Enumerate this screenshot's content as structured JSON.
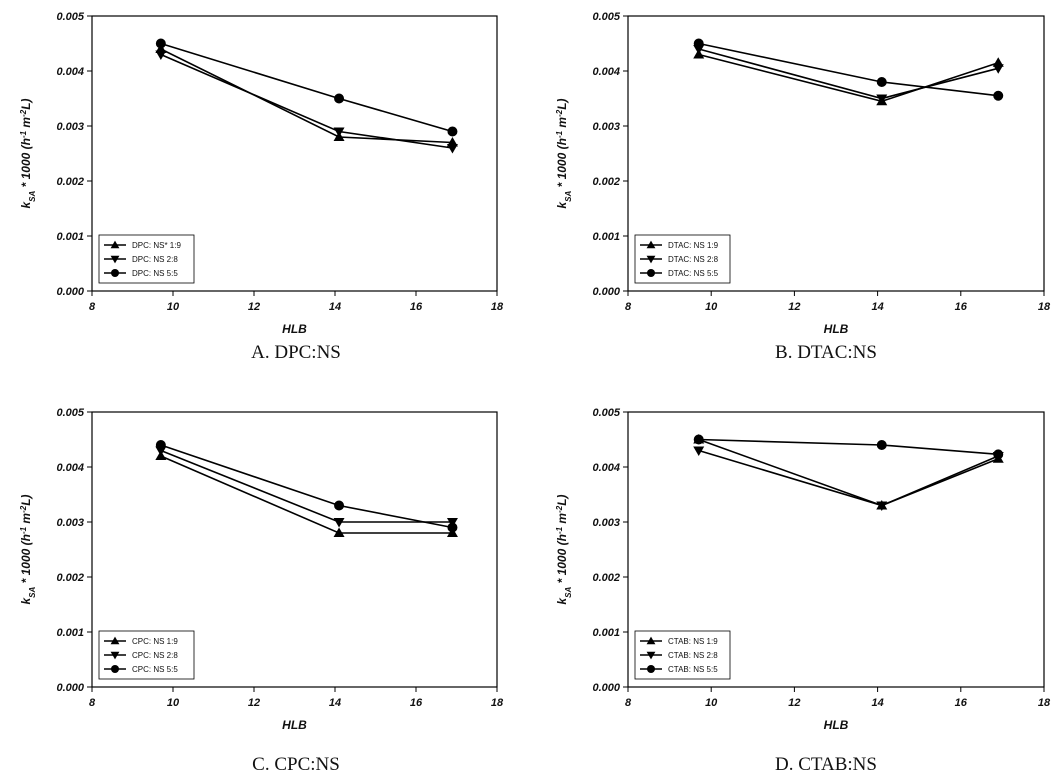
{
  "chart_data": [
    {
      "type": "line",
      "caption": "A. DPC:NS",
      "xlabel": "HLB",
      "ylabel": "k_SA * 1000 (h^-1 m^-2 L)",
      "xlim": [
        8,
        18
      ],
      "ylim": [
        0,
        0.005
      ],
      "xticks": [
        "8",
        "10",
        "12",
        "14",
        "16",
        "18"
      ],
      "yticks": [
        "0.000",
        "0.001",
        "0.002",
        "0.003",
        "0.004",
        "0.005"
      ],
      "legend_position": "lower-left",
      "x": [
        9.7,
        14.1,
        16.9
      ],
      "series": [
        {
          "name": "DPC: NS* 1:9",
          "marker": "triangle-up",
          "values": [
            0.0044,
            0.0028,
            0.0027
          ]
        },
        {
          "name": "DPC: NS 2:8",
          "marker": "triangle-down",
          "values": [
            0.0043,
            0.0029,
            0.0026
          ]
        },
        {
          "name": "DPC: NS 5:5",
          "marker": "circle",
          "values": [
            0.0045,
            0.0035,
            0.0029
          ]
        }
      ]
    },
    {
      "type": "line",
      "caption": "B. DTAC:NS",
      "xlabel": "HLB",
      "ylabel": "k_SA * 1000 (h^-1 m^-2 L)",
      "xlim": [
        8,
        18
      ],
      "ylim": [
        0,
        0.005
      ],
      "xticks": [
        "8",
        "10",
        "12",
        "14",
        "16",
        "18"
      ],
      "yticks": [
        "0.000",
        "0.001",
        "0.002",
        "0.003",
        "0.004",
        "0.005"
      ],
      "legend_position": "lower-left",
      "x": [
        9.7,
        14.1,
        16.9
      ],
      "series": [
        {
          "name": "DTAC: NS 1:9",
          "marker": "triangle-up",
          "values": [
            0.0043,
            0.00345,
            0.00415
          ]
        },
        {
          "name": "DTAC: NS 2:8",
          "marker": "triangle-down",
          "values": [
            0.0044,
            0.0035,
            0.00405
          ]
        },
        {
          "name": "DTAC: NS 5:5",
          "marker": "circle",
          "values": [
            0.0045,
            0.0038,
            0.00355
          ]
        }
      ]
    },
    {
      "type": "line",
      "caption": "C. CPC:NS",
      "xlabel": "HLB",
      "ylabel": "k_SA * 1000 (h^-1 m^-2 L)",
      "xlim": [
        8,
        18
      ],
      "ylim": [
        0,
        0.005
      ],
      "xticks": [
        "8",
        "10",
        "12",
        "14",
        "16",
        "18"
      ],
      "yticks": [
        "0.000",
        "0.001",
        "0.002",
        "0.003",
        "0.004",
        "0.005"
      ],
      "legend_position": "lower-left",
      "x": [
        9.7,
        14.1,
        16.9
      ],
      "series": [
        {
          "name": "CPC: NS 1:9",
          "marker": "triangle-up",
          "values": [
            0.0042,
            0.0028,
            0.0028
          ]
        },
        {
          "name": "CPC: NS 2:8",
          "marker": "triangle-down",
          "values": [
            0.0043,
            0.003,
            0.003
          ]
        },
        {
          "name": "CPC: NS 5:5",
          "marker": "circle",
          "values": [
            0.0044,
            0.0033,
            0.0029
          ]
        }
      ]
    },
    {
      "type": "line",
      "caption": "D. CTAB:NS",
      "xlabel": "HLB",
      "ylabel": "k_SA * 1000 (h^-1 m^-2 L)",
      "xlim": [
        8,
        18
      ],
      "ylim": [
        0,
        0.005
      ],
      "xticks": [
        "8",
        "10",
        "12",
        "14",
        "16",
        "18"
      ],
      "yticks": [
        "0.000",
        "0.001",
        "0.002",
        "0.003",
        "0.004",
        "0.005"
      ],
      "legend_position": "lower-left",
      "x": [
        9.7,
        14.1,
        16.9
      ],
      "series": [
        {
          "name": "CTAB: NS 1:9",
          "marker": "triangle-up",
          "values": [
            0.0045,
            0.0033,
            0.00415
          ]
        },
        {
          "name": "CTAB: NS 2:8",
          "marker": "triangle-down",
          "values": [
            0.0043,
            0.0033,
            0.0042
          ]
        },
        {
          "name": "CTAB: NS 5:5",
          "marker": "circle",
          "values": [
            0.0045,
            0.0044,
            0.00423
          ]
        }
      ]
    }
  ]
}
